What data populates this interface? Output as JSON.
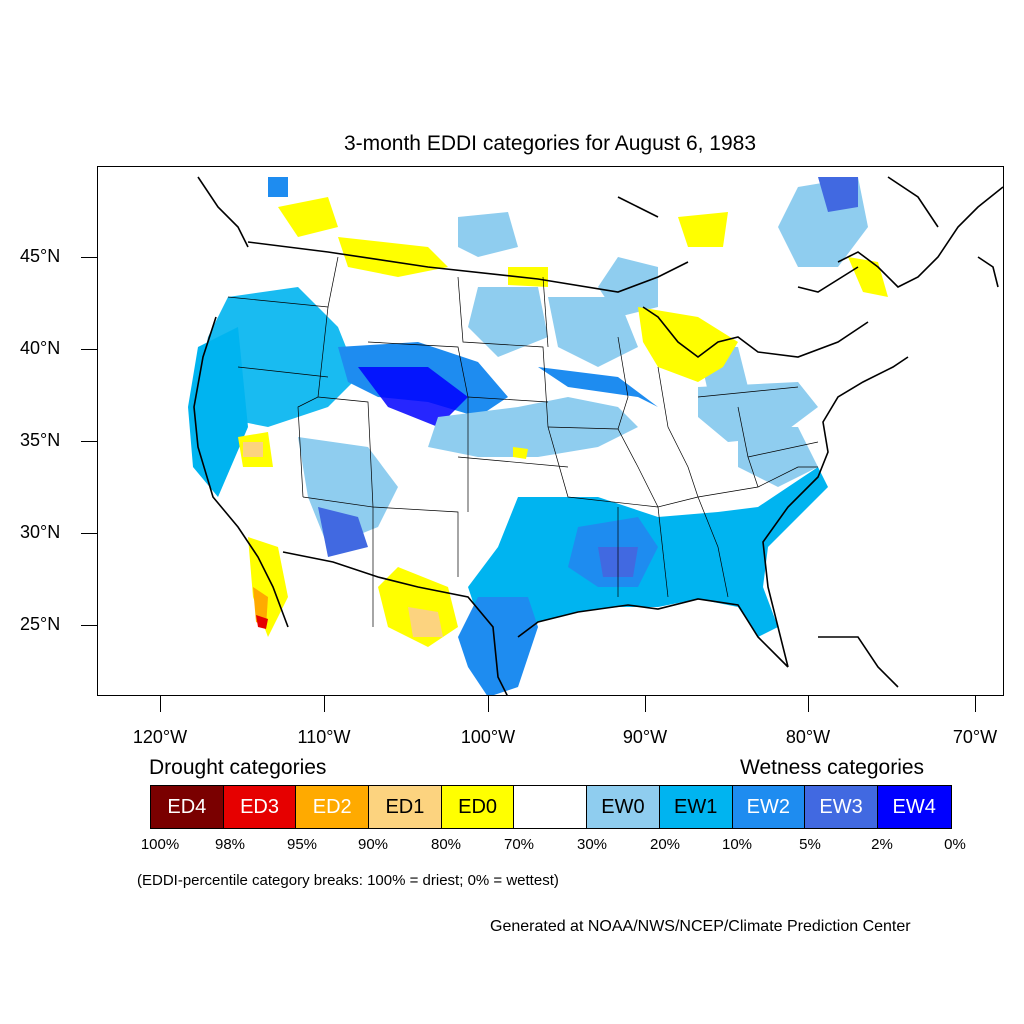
{
  "title": "3-month EDDI categories for August 6, 1983",
  "lat_labels": [
    "45°N",
    "40°N",
    "35°N",
    "30°N",
    "25°N"
  ],
  "lon_labels": [
    "120°W",
    "110°W",
    "100°W",
    "90°W",
    "80°W",
    "70°W"
  ],
  "legend": {
    "drought_heading": "Drought categories",
    "wetness_heading": "Wetness categories",
    "categories": [
      {
        "label": "ED4",
        "color": "#7a0000",
        "text_color": "#ffffff"
      },
      {
        "label": "ED3",
        "color": "#e60000",
        "text_color": "#ffffff"
      },
      {
        "label": "ED2",
        "color": "#ffaa00",
        "text_color": "#ffffff"
      },
      {
        "label": "ED1",
        "color": "#fcd37f",
        "text_color": "#000000"
      },
      {
        "label": "ED0",
        "color": "#ffff00",
        "text_color": "#000000"
      },
      {
        "label": "",
        "color": "#ffffff",
        "text_color": "#000000"
      },
      {
        "label": "EW0",
        "color": "#8fcdef",
        "text_color": "#000000"
      },
      {
        "label": "EW1",
        "color": "#00b4f0",
        "text_color": "#000000"
      },
      {
        "label": "EW2",
        "color": "#1e8cf0",
        "text_color": "#ffffff"
      },
      {
        "label": "EW3",
        "color": "#4169e1",
        "text_color": "#ffffff"
      },
      {
        "label": "EW4",
        "color": "#0000ff",
        "text_color": "#ffffff"
      }
    ],
    "breaks": [
      "100%",
      "98%",
      "95%",
      "90%",
      "80%",
      "70%",
      "30%",
      "20%",
      "10%",
      "5%",
      "2%",
      "0%"
    ]
  },
  "note": "(EDDI-percentile category breaks: 100% = driest; 0% = wettest)",
  "credit": "Generated at NOAA/NWS/NCEP/Climate Prediction Center"
}
